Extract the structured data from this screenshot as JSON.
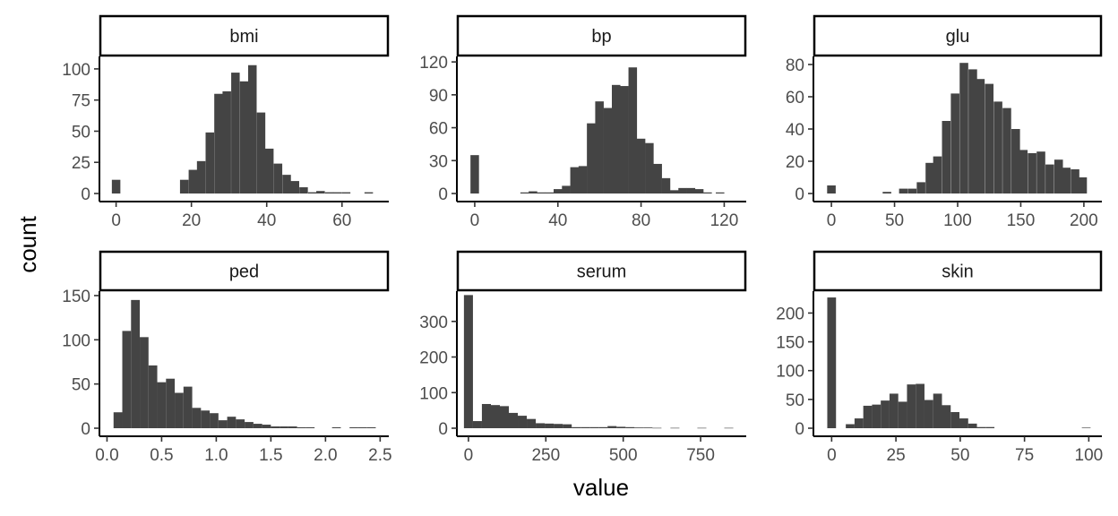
{
  "chart_data": {
    "type": "bar",
    "subtype": "faceted-histogram",
    "xlabel": "value",
    "ylabel": "count",
    "bar_color": "#444444",
    "panel_layout": "2 rows x 3 columns, free scales",
    "panels": [
      {
        "name": "bmi",
        "xlim": [
          -3,
          71
        ],
        "ylim": [
          0,
          110
        ],
        "x_ticks": [
          0,
          20,
          40,
          60
        ],
        "x_tick_labels": [
          "0",
          "20",
          "40",
          "60"
        ],
        "y_ticks": [
          0,
          25,
          50,
          75,
          100
        ],
        "y_tick_labels": [
          "0",
          "25",
          "50",
          "75",
          "100"
        ],
        "bin_width": 2.26,
        "bins": [
          {
            "x": 0,
            "count": 11
          },
          {
            "x": 18.1,
            "count": 11
          },
          {
            "x": 20.4,
            "count": 19
          },
          {
            "x": 22.6,
            "count": 26
          },
          {
            "x": 24.9,
            "count": 49
          },
          {
            "x": 27.2,
            "count": 80
          },
          {
            "x": 29.4,
            "count": 82
          },
          {
            "x": 31.7,
            "count": 97
          },
          {
            "x": 34.0,
            "count": 90
          },
          {
            "x": 36.2,
            "count": 103
          },
          {
            "x": 38.5,
            "count": 65
          },
          {
            "x": 40.7,
            "count": 36
          },
          {
            "x": 43.0,
            "count": 24
          },
          {
            "x": 45.3,
            "count": 15
          },
          {
            "x": 47.5,
            "count": 10
          },
          {
            "x": 49.8,
            "count": 5
          },
          {
            "x": 52.1,
            "count": 1
          },
          {
            "x": 54.3,
            "count": 2
          },
          {
            "x": 56.6,
            "count": 1
          },
          {
            "x": 58.8,
            "count": 1
          },
          {
            "x": 61.1,
            "count": 1
          },
          {
            "x": 67.1,
            "count": 1
          }
        ]
      },
      {
        "name": "bp",
        "xlim": [
          -6,
          128
        ],
        "ylim": [
          0,
          125
        ],
        "x_ticks": [
          0,
          40,
          80,
          120
        ],
        "x_tick_labels": [
          "0",
          "40",
          "80",
          "120"
        ],
        "y_ticks": [
          0,
          30,
          60,
          90,
          120
        ],
        "y_tick_labels": [
          "0",
          "30",
          "60",
          "90",
          "120"
        ],
        "bin_width": 4.1,
        "bins": [
          {
            "x": 0,
            "count": 35
          },
          {
            "x": 24,
            "count": 1
          },
          {
            "x": 28,
            "count": 2
          },
          {
            "x": 32,
            "count": 1
          },
          {
            "x": 36,
            "count": 1
          },
          {
            "x": 40,
            "count": 4
          },
          {
            "x": 44,
            "count": 7
          },
          {
            "x": 48,
            "count": 24
          },
          {
            "x": 52,
            "count": 25
          },
          {
            "x": 56,
            "count": 64
          },
          {
            "x": 60,
            "count": 84
          },
          {
            "x": 64,
            "count": 78
          },
          {
            "x": 68,
            "count": 99
          },
          {
            "x": 72,
            "count": 98
          },
          {
            "x": 76,
            "count": 115
          },
          {
            "x": 80,
            "count": 50
          },
          {
            "x": 84,
            "count": 46
          },
          {
            "x": 88,
            "count": 27
          },
          {
            "x": 92,
            "count": 14
          },
          {
            "x": 96,
            "count": 3
          },
          {
            "x": 100,
            "count": 5
          },
          {
            "x": 104,
            "count": 5
          },
          {
            "x": 108,
            "count": 4
          },
          {
            "x": 112,
            "count": 1
          },
          {
            "x": 118,
            "count": 1
          }
        ]
      },
      {
        "name": "glu",
        "xlim": [
          -10,
          210
        ],
        "ylim": [
          0,
          85
        ],
        "x_ticks": [
          0,
          50,
          100,
          150,
          200
        ],
        "x_tick_labels": [
          "0",
          "50",
          "100",
          "150",
          "200"
        ],
        "y_ticks": [
          0,
          20,
          40,
          60,
          80
        ],
        "y_tick_labels": [
          "0",
          "20",
          "40",
          "60",
          "80"
        ],
        "bin_width": 6.8,
        "bins": [
          {
            "x": 0,
            "count": 5
          },
          {
            "x": 44,
            "count": 1
          },
          {
            "x": 57,
            "count": 3
          },
          {
            "x": 64,
            "count": 3
          },
          {
            "x": 71,
            "count": 7
          },
          {
            "x": 78,
            "count": 19
          },
          {
            "x": 84,
            "count": 23
          },
          {
            "x": 91,
            "count": 45
          },
          {
            "x": 98,
            "count": 62
          },
          {
            "x": 105,
            "count": 81
          },
          {
            "x": 112,
            "count": 77
          },
          {
            "x": 118,
            "count": 71
          },
          {
            "x": 125,
            "count": 68
          },
          {
            "x": 132,
            "count": 57
          },
          {
            "x": 139,
            "count": 53
          },
          {
            "x": 146,
            "count": 40
          },
          {
            "x": 152,
            "count": 27
          },
          {
            "x": 159,
            "count": 25
          },
          {
            "x": 166,
            "count": 26
          },
          {
            "x": 173,
            "count": 18
          },
          {
            "x": 180,
            "count": 21
          },
          {
            "x": 186,
            "count": 16
          },
          {
            "x": 193,
            "count": 15
          },
          {
            "x": 199,
            "count": 10
          }
        ]
      },
      {
        "name": "ped",
        "xlim": [
          -0.02,
          2.53
        ],
        "ylim": [
          0,
          155
        ],
        "x_ticks": [
          0.0,
          0.5,
          1.0,
          1.5,
          2.0,
          2.5
        ],
        "x_tick_labels": [
          "0.0",
          "0.5",
          "1.0",
          "1.5",
          "2.0",
          "2.5"
        ],
        "y_ticks": [
          0,
          50,
          100,
          150
        ],
        "y_tick_labels": [
          "0",
          "50",
          "100",
          "150"
        ],
        "bin_width": 0.08,
        "bins": [
          {
            "x": 0.1,
            "count": 18
          },
          {
            "x": 0.18,
            "count": 110
          },
          {
            "x": 0.26,
            "count": 145
          },
          {
            "x": 0.34,
            "count": 103
          },
          {
            "x": 0.42,
            "count": 71
          },
          {
            "x": 0.5,
            "count": 52
          },
          {
            "x": 0.58,
            "count": 56
          },
          {
            "x": 0.66,
            "count": 40
          },
          {
            "x": 0.74,
            "count": 47
          },
          {
            "x": 0.82,
            "count": 23
          },
          {
            "x": 0.9,
            "count": 20
          },
          {
            "x": 0.98,
            "count": 17
          },
          {
            "x": 1.06,
            "count": 9
          },
          {
            "x": 1.14,
            "count": 13
          },
          {
            "x": 1.22,
            "count": 10
          },
          {
            "x": 1.3,
            "count": 7
          },
          {
            "x": 1.38,
            "count": 5
          },
          {
            "x": 1.46,
            "count": 4
          },
          {
            "x": 1.54,
            "count": 2
          },
          {
            "x": 1.62,
            "count": 2
          },
          {
            "x": 1.7,
            "count": 2
          },
          {
            "x": 1.78,
            "count": 1
          },
          {
            "x": 1.86,
            "count": 1
          },
          {
            "x": 2.1,
            "count": 1
          },
          {
            "x": 2.26,
            "count": 1
          },
          {
            "x": 2.34,
            "count": 1
          },
          {
            "x": 2.42,
            "count": 1
          }
        ]
      },
      {
        "name": "serum",
        "xlim": [
          -20,
          880
        ],
        "ylim": [
          0,
          385
        ],
        "x_ticks": [
          0,
          250,
          500,
          750
        ],
        "x_tick_labels": [
          "0",
          "250",
          "500",
          "750"
        ],
        "y_ticks": [
          0,
          100,
          200,
          300
        ],
        "y_tick_labels": [
          "0",
          "100",
          "200",
          "300"
        ],
        "bin_width": 29.1,
        "bins": [
          {
            "x": 0,
            "count": 374
          },
          {
            "x": 29,
            "count": 20
          },
          {
            "x": 58,
            "count": 68
          },
          {
            "x": 87,
            "count": 65
          },
          {
            "x": 116,
            "count": 62
          },
          {
            "x": 145,
            "count": 43
          },
          {
            "x": 174,
            "count": 35
          },
          {
            "x": 203,
            "count": 26
          },
          {
            "x": 232,
            "count": 14
          },
          {
            "x": 261,
            "count": 13
          },
          {
            "x": 290,
            "count": 12
          },
          {
            "x": 319,
            "count": 11
          },
          {
            "x": 348,
            "count": 3
          },
          {
            "x": 377,
            "count": 3
          },
          {
            "x": 406,
            "count": 3
          },
          {
            "x": 435,
            "count": 3
          },
          {
            "x": 464,
            "count": 6
          },
          {
            "x": 493,
            "count": 4
          },
          {
            "x": 522,
            "count": 3
          },
          {
            "x": 551,
            "count": 2
          },
          {
            "x": 580,
            "count": 2
          },
          {
            "x": 609,
            "count": 1
          },
          {
            "x": 667,
            "count": 1
          },
          {
            "x": 754,
            "count": 1
          },
          {
            "x": 841,
            "count": 1
          }
        ]
      },
      {
        "name": "skin",
        "xlim": [
          -5,
          103
        ],
        "ylim": [
          0,
          238
        ],
        "x_ticks": [
          0,
          25,
          50,
          75,
          100
        ],
        "x_tick_labels": [
          "0",
          "25",
          "50",
          "75",
          "100"
        ],
        "y_ticks": [
          0,
          50,
          100,
          150,
          200
        ],
        "y_tick_labels": [
          "0",
          "50",
          "100",
          "150",
          "200"
        ],
        "bin_width": 3.4,
        "bins": [
          {
            "x": 0,
            "count": 227
          },
          {
            "x": 7.2,
            "count": 7
          },
          {
            "x": 10.6,
            "count": 17
          },
          {
            "x": 14.0,
            "count": 39
          },
          {
            "x": 17.4,
            "count": 41
          },
          {
            "x": 20.8,
            "count": 48
          },
          {
            "x": 24.2,
            "count": 60
          },
          {
            "x": 27.6,
            "count": 46
          },
          {
            "x": 31.0,
            "count": 76
          },
          {
            "x": 34.4,
            "count": 77
          },
          {
            "x": 37.8,
            "count": 49
          },
          {
            "x": 41.2,
            "count": 60
          },
          {
            "x": 44.6,
            "count": 40
          },
          {
            "x": 48.0,
            "count": 28
          },
          {
            "x": 51.4,
            "count": 17
          },
          {
            "x": 54.8,
            "count": 8
          },
          {
            "x": 58.2,
            "count": 2
          },
          {
            "x": 61.6,
            "count": 2
          },
          {
            "x": 99.0,
            "count": 1
          }
        ]
      }
    ]
  }
}
